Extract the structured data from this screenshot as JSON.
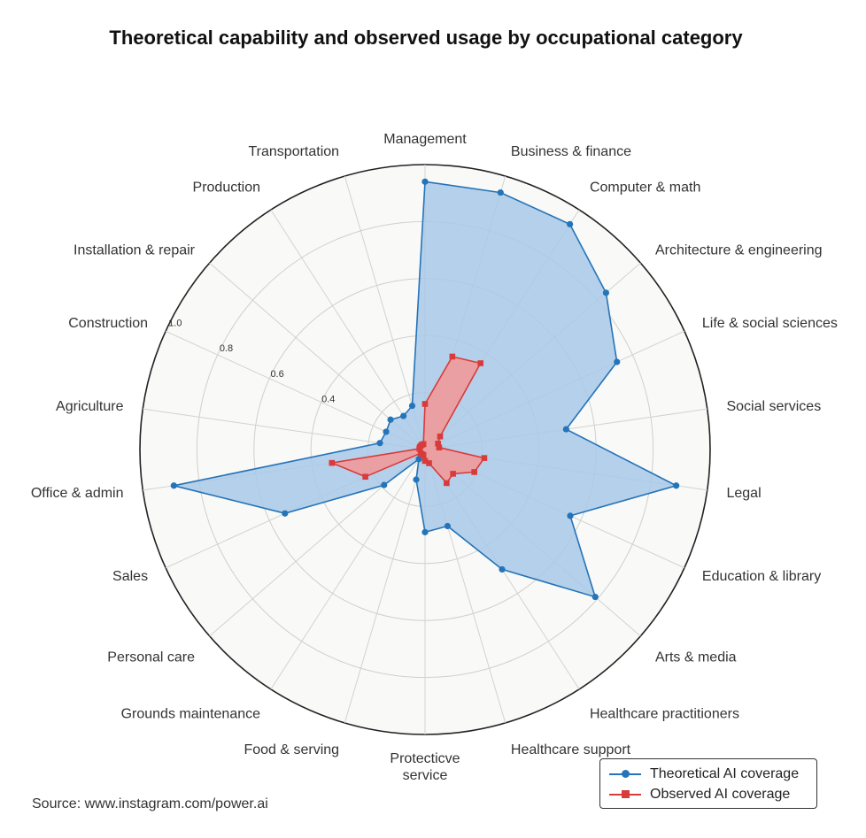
{
  "chart_data": {
    "type": "radar",
    "title": "Theoretical capability and observed usage by occupational category",
    "source": "Source: www.instagram.com/power.ai",
    "rlim": [
      0,
      1.0
    ],
    "rticks": [
      0.2,
      0.4,
      0.6,
      0.8,
      1.0
    ],
    "rtick_labels": [
      "0.4",
      "0.6",
      "0.8",
      "1.0"
    ],
    "grid": true,
    "legend_position": "bottom-right",
    "categories": [
      "Management",
      "Business & finance",
      "Computer & math",
      "Architecture & engineering",
      "Life & social sciences",
      "Social services",
      "Legal",
      "Education & library",
      "Arts & media",
      "Healthcare practitioners",
      "Healthcare support",
      "Protecticve\nservice",
      "Food & serving",
      "Grounds maintenance",
      "Personal care",
      "Sales",
      "Office & admin",
      "Agriculture",
      "Construction",
      "Installation & repair",
      "Production",
      "Transportation"
    ],
    "series": [
      {
        "name": "Theoretical AI coverage",
        "color": "#2474b9",
        "fill": "#a9c9e8",
        "marker": "circle",
        "values": [
          0.94,
          0.94,
          0.94,
          0.84,
          0.74,
          0.5,
          0.89,
          0.56,
          0.79,
          0.5,
          0.28,
          0.29,
          0.11,
          0.04,
          0.19,
          0.54,
          0.89,
          0.16,
          0.15,
          0.16,
          0.14,
          0.16
        ]
      },
      {
        "name": "Observed AI coverage",
        "color": "#d93b3b",
        "fill": "#ef9a9a",
        "marker": "square",
        "values": [
          0.16,
          0.34,
          0.36,
          0.07,
          0.05,
          0.05,
          0.21,
          0.19,
          0.13,
          0.14,
          0.05,
          0.04,
          0.02,
          0.02,
          0.02,
          0.23,
          0.33,
          0.02,
          0.02,
          0.02,
          0.02,
          0.02
        ]
      }
    ]
  }
}
